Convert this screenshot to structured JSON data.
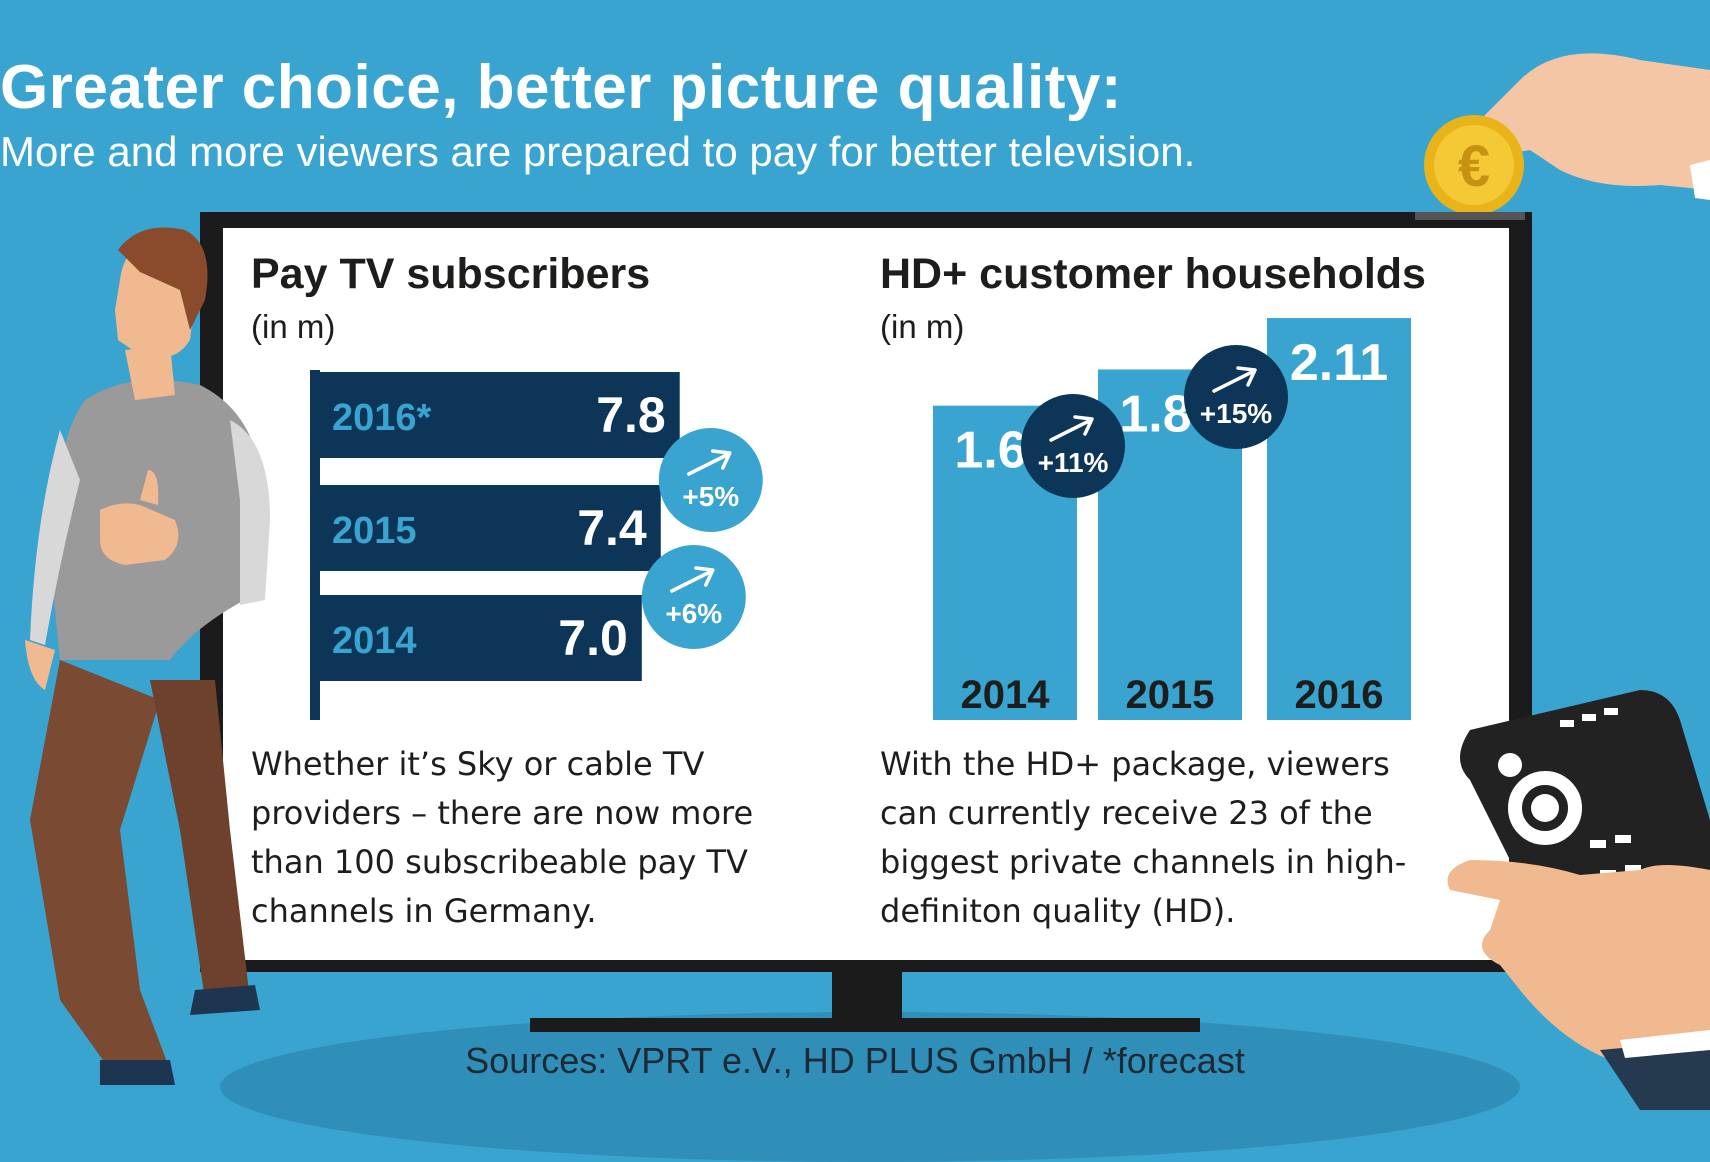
{
  "header": {
    "title": "Greater choice, better picture quality:",
    "subtitle": "More and more viewers are prepared to pay for better television."
  },
  "panels": {
    "left": {
      "title": "Pay TV subscribers",
      "unit": "(in m)",
      "description": "Whether it’s Sky or cable TV providers – there are now more than 100 subscribeable pay TV channels in Germany."
    },
    "right": {
      "title": "HD+ customer households",
      "unit": "(in m)",
      "description": "With the HD+ package, viewers can currently receive 23 of the biggest private channels in high-definiton quality (HD)."
    }
  },
  "footer": {
    "source": "Sources: VPRT e.V., HD PLUS GmbH / *forecast"
  },
  "colors": {
    "background": "#3aa4d0",
    "dark_bar": "#0d3557",
    "light_bar": "#3aa4d0",
    "badge_light": "#3aa4d0",
    "badge_dark": "#0d3557",
    "tv": "#1b1b1b"
  },
  "icons": [
    "euro-coin-icon",
    "hand-icon",
    "man-illustration-icon",
    "remote-control-icon",
    "trend-arrow-icon"
  ],
  "chart_data": [
    {
      "type": "bar",
      "orientation": "horizontal",
      "title": "Pay TV subscribers",
      "unit": "(in m)",
      "categories": [
        "2016*",
        "2015",
        "2014"
      ],
      "values": [
        7.8,
        7.4,
        7.0
      ],
      "value_labels": [
        "7.8",
        "7.4",
        "7.0"
      ],
      "growth": [
        {
          "label": "+5%",
          "from": "2015",
          "to": "2016*"
        },
        {
          "label": "+6%",
          "from": "2014",
          "to": "2015"
        }
      ]
    },
    {
      "type": "bar",
      "orientation": "vertical",
      "title": "HD+ customer households",
      "unit": "(in m)",
      "categories": [
        "2014",
        "2015",
        "2016"
      ],
      "values": [
        1.65,
        1.84,
        2.11
      ],
      "value_labels": [
        "1.65",
        "1.84",
        "2.11"
      ],
      "growth": [
        {
          "label": "+11%",
          "from": "2014",
          "to": "2015"
        },
        {
          "label": "+15%",
          "from": "2015",
          "to": "2016"
        }
      ]
    }
  ]
}
